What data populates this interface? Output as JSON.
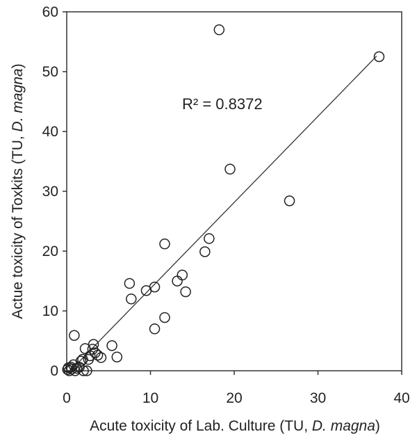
{
  "chart_data": {
    "type": "scatter",
    "xlabel": {
      "prefix": "Acute toxicity of Lab. Culture (TU, ",
      "italic": "D. magna",
      "suffix": ")"
    },
    "ylabel": {
      "prefix": "Actue toxicity of Toxkits (TU, ",
      "italic": "D. magna",
      "suffix": ")"
    },
    "xlim": [
      0,
      40
    ],
    "ylim": [
      0,
      60
    ],
    "xticks": [
      0,
      10,
      20,
      30,
      40
    ],
    "yticks": [
      0,
      10,
      20,
      30,
      40,
      50,
      60
    ],
    "grid": false,
    "annotation": "R² = 0.8372",
    "trendline": {
      "x": [
        0.3,
        37.0
      ],
      "y": [
        -0.2,
        52.6
      ]
    },
    "points": [
      {
        "x": 0.1,
        "y": 0.2
      },
      {
        "x": 0.2,
        "y": 0.5
      },
      {
        "x": 0.3,
        "y": 0.0
      },
      {
        "x": 0.5,
        "y": 0.6
      },
      {
        "x": 0.6,
        "y": 0.3
      },
      {
        "x": 0.8,
        "y": 1.0
      },
      {
        "x": 1.0,
        "y": 0.0
      },
      {
        "x": 1.2,
        "y": 0.4
      },
      {
        "x": 0.9,
        "y": 5.9
      },
      {
        "x": 1.5,
        "y": 0.6
      },
      {
        "x": 1.7,
        "y": 1.6
      },
      {
        "x": 1.9,
        "y": 1.9
      },
      {
        "x": 2.0,
        "y": 0.0
      },
      {
        "x": 2.2,
        "y": 3.7
      },
      {
        "x": 2.4,
        "y": 0.0
      },
      {
        "x": 2.6,
        "y": 1.9
      },
      {
        "x": 2.8,
        "y": 2.5
      },
      {
        "x": 3.1,
        "y": 3.6
      },
      {
        "x": 3.2,
        "y": 4.4
      },
      {
        "x": 3.4,
        "y": 3.0
      },
      {
        "x": 3.7,
        "y": 2.6
      },
      {
        "x": 4.1,
        "y": 2.2
      },
      {
        "x": 5.4,
        "y": 4.2
      },
      {
        "x": 6.0,
        "y": 2.3
      },
      {
        "x": 7.5,
        "y": 14.6
      },
      {
        "x": 7.7,
        "y": 12.0
      },
      {
        "x": 9.5,
        "y": 13.4
      },
      {
        "x": 10.5,
        "y": 14.0
      },
      {
        "x": 10.5,
        "y": 7.0
      },
      {
        "x": 11.7,
        "y": 21.2
      },
      {
        "x": 11.7,
        "y": 8.9
      },
      {
        "x": 13.2,
        "y": 15.0
      },
      {
        "x": 13.8,
        "y": 16.0
      },
      {
        "x": 14.2,
        "y": 13.2
      },
      {
        "x": 16.5,
        "y": 19.9
      },
      {
        "x": 17.0,
        "y": 22.1
      },
      {
        "x": 18.2,
        "y": 57.0
      },
      {
        "x": 19.5,
        "y": 33.7
      },
      {
        "x": 26.6,
        "y": 28.4
      },
      {
        "x": 37.3,
        "y": 52.5
      }
    ]
  }
}
